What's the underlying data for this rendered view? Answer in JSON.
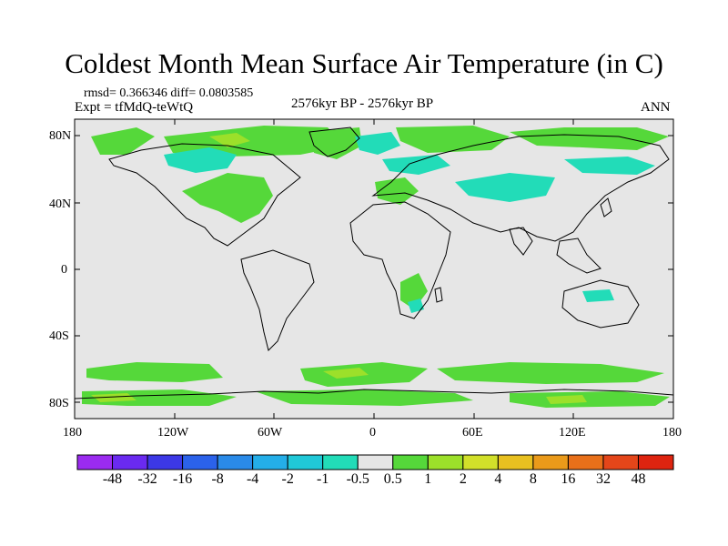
{
  "title": "Coldest Month Mean Surface Air Temperature (in C)",
  "stats": "rmsd= 0.366346 diff= 0.0803585",
  "experiment": "Expt = tfMdQ-teWtQ",
  "period": "2576kyr BP - 2576kyr BP",
  "season": "ANN",
  "lat_labels": [
    "80N",
    "40N",
    "0",
    "40S",
    "80S"
  ],
  "lon_labels": [
    "180",
    "120W",
    "60W",
    "0",
    "60E",
    "120E",
    "180"
  ],
  "colorbar": {
    "labels": [
      "-48",
      "-32",
      "-16",
      "-8",
      "-4",
      "-2",
      "-1",
      "-0.5",
      "0.5",
      "1",
      "2",
      "4",
      "8",
      "16",
      "32",
      "48"
    ],
    "colors": [
      "#9b2bf0",
      "#6a2af0",
      "#3c38e6",
      "#2b62ea",
      "#2a8ae8",
      "#24aee8",
      "#20c8d8",
      "#22dcb8",
      "#e6e6e6",
      "#55d83a",
      "#9ce02a",
      "#d2e02a",
      "#e8c020",
      "#ea9a1a",
      "#e8701a",
      "#e4461a",
      "#de2410"
    ]
  },
  "colors": {
    "ocean_land_bg": "#e6e6e6",
    "warm_light": "#55d83a",
    "warm_mid": "#9ce02a",
    "cold_light": "#22dcb8",
    "cold_mid": "#20c8d8"
  }
}
